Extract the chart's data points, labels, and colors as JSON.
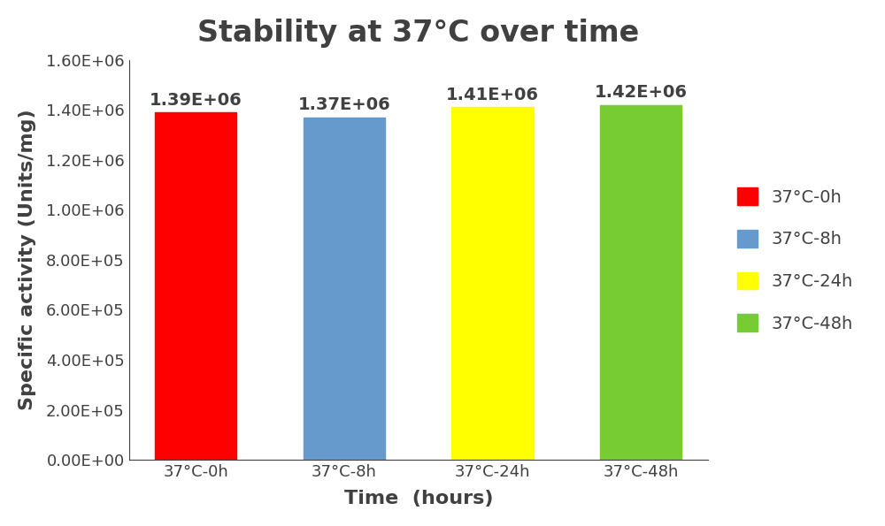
{
  "title": "Stability at 37°C over time",
  "categories": [
    "37°C-0h",
    "37°C-8h",
    "37°C-24h",
    "37°C-48h"
  ],
  "values": [
    1390000,
    1370000,
    1410000,
    1420000
  ],
  "bar_labels": [
    "1.39E+06",
    "1.37E+06",
    "1.41E+06",
    "1.42E+06"
  ],
  "bar_colors": [
    "#ff0000",
    "#6699cc",
    "#ffff00",
    "#77cc33"
  ],
  "legend_labels": [
    "37°C-0h",
    "37°C-8h",
    "37°C-24h",
    "37°C-48h"
  ],
  "xlabel": "Time （hours）",
  "xlabel_display": "Time  (hours)",
  "ylabel": "Specific activity (Units/mg)",
  "ylim": [
    0,
    1600000
  ],
  "yticks": [
    0,
    200000,
    400000,
    600000,
    800000,
    1000000,
    1200000,
    1400000,
    1600000
  ],
  "ytick_labels": [
    "0.00E+00",
    "2.00E+05",
    "4.00E+05",
    "6.00E+05",
    "8.00E+05",
    "1.00E+06",
    "1.20E+06",
    "1.40E+06",
    "1.60E+06"
  ],
  "title_fontsize": 24,
  "axis_label_fontsize": 16,
  "tick_fontsize": 13,
  "bar_label_fontsize": 14,
  "legend_fontsize": 14,
  "text_color": "#404040",
  "background_color": "#ffffff",
  "bar_width": 0.55,
  "figsize": [
    10.0,
    5.95
  ]
}
